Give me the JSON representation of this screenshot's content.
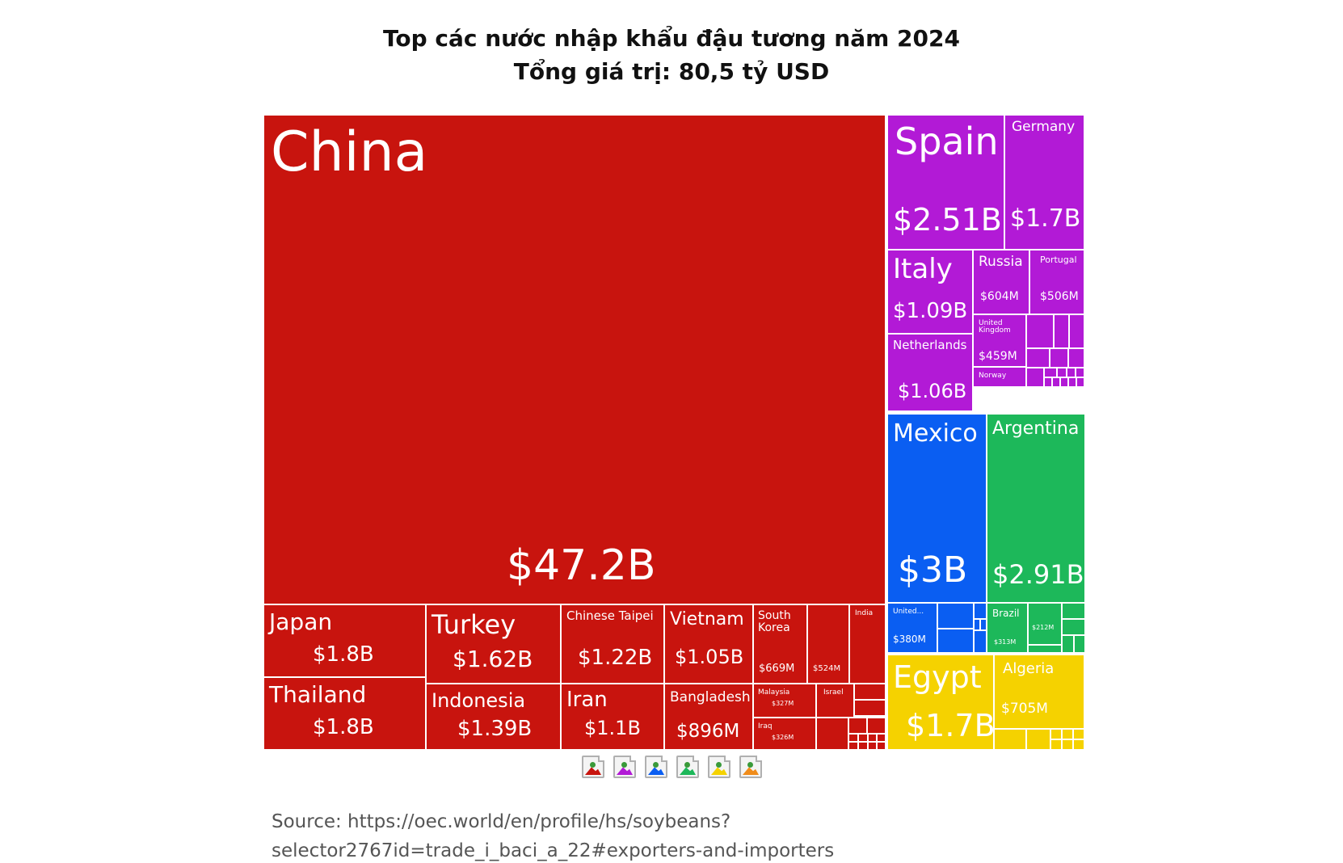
{
  "header": {
    "title_line1": "Top các nước nhập khẩu đậu tương năm 2024",
    "title_line2": "Tổng giá trị: 80,5 tỷ USD"
  },
  "chart_data": {
    "type": "treemap",
    "title": "Top các nước nhập khẩu đậu tương năm 2024",
    "subtitle": "Tổng giá trị: 80,5 tỷ USD",
    "value_unit": "USD",
    "regions": [
      {
        "region": "asia",
        "color": "#c8140e"
      },
      {
        "region": "europe",
        "color": "#b21ad6"
      },
      {
        "region": "north-america",
        "color": "#0a5ef2"
      },
      {
        "region": "south-america",
        "color": "#1db85a"
      },
      {
        "region": "africa",
        "color": "#f5d200"
      }
    ],
    "tiles": [
      {
        "id": "china",
        "name": "China",
        "value_label": "$47.2B",
        "value": 47.2,
        "region": "asia"
      },
      {
        "id": "japan",
        "name": "Japan",
        "value_label": "$1.8B",
        "value": 1.8,
        "region": "asia"
      },
      {
        "id": "thailand",
        "name": "Thailand",
        "value_label": "$1.8B",
        "value": 1.8,
        "region": "asia"
      },
      {
        "id": "turkey",
        "name": "Turkey",
        "value_label": "$1.62B",
        "value": 1.62,
        "region": "asia"
      },
      {
        "id": "indonesia",
        "name": "Indonesia",
        "value_label": "$1.39B",
        "value": 1.39,
        "region": "asia"
      },
      {
        "id": "chinese-taipei",
        "name": "Chinese Taipei",
        "value_label": "$1.22B",
        "value": 1.22,
        "region": "asia"
      },
      {
        "id": "iran",
        "name": "Iran",
        "value_label": "$1.1B",
        "value": 1.1,
        "region": "asia"
      },
      {
        "id": "vietnam",
        "name": "Vietnam",
        "value_label": "$1.05B",
        "value": 1.05,
        "region": "asia"
      },
      {
        "id": "bangladesh",
        "name": "Bangladesh",
        "value_label": "$896M",
        "value": 0.896,
        "region": "asia"
      },
      {
        "id": "south-korea",
        "name": "South\nKorea",
        "value_label": "$669M",
        "value": 0.669,
        "region": "asia"
      },
      {
        "id": "asia-524m",
        "name": "",
        "value_label": "$524M",
        "value": 0.524,
        "region": "asia"
      },
      {
        "id": "india",
        "name": "India",
        "value_label": "",
        "value": null,
        "region": "asia"
      },
      {
        "id": "malaysia",
        "name": "Malaysia",
        "value_label": "$327M",
        "value": 0.327,
        "region": "asia"
      },
      {
        "id": "israel",
        "name": "Israel",
        "value_label": "",
        "value": null,
        "region": "asia"
      },
      {
        "id": "iraq",
        "name": "Iraq",
        "value_label": "$326M",
        "value": 0.326,
        "region": "asia"
      },
      {
        "id": "spain",
        "name": "Spain",
        "value_label": "$2.51B",
        "value": 2.51,
        "region": "europe"
      },
      {
        "id": "germany",
        "name": "Germany",
        "value_label": "$1.7B",
        "value": 1.7,
        "region": "europe"
      },
      {
        "id": "italy",
        "name": "Italy",
        "value_label": "$1.09B",
        "value": 1.09,
        "region": "europe"
      },
      {
        "id": "netherlands",
        "name": "Netherlands",
        "value_label": "$1.06B",
        "value": 1.06,
        "region": "europe"
      },
      {
        "id": "russia",
        "name": "Russia",
        "value_label": "$604M",
        "value": 0.604,
        "region": "europe"
      },
      {
        "id": "portugal",
        "name": "Portugal",
        "value_label": "$506M",
        "value": 0.506,
        "region": "europe"
      },
      {
        "id": "united-kingdom",
        "name": "United\nKingdom",
        "value_label": "$459M",
        "value": 0.459,
        "region": "europe"
      },
      {
        "id": "norway",
        "name": "Norway",
        "value_label": "",
        "value": null,
        "region": "europe"
      },
      {
        "id": "mexico",
        "name": "Mexico",
        "value_label": "$3B",
        "value": 3.0,
        "region": "north-america"
      },
      {
        "id": "united-states",
        "name": "United...",
        "value_label": "$380M",
        "value": 0.38,
        "region": "north-america"
      },
      {
        "id": "argentina",
        "name": "Argentina",
        "value_label": "$2.91B",
        "value": 2.91,
        "region": "south-america"
      },
      {
        "id": "brazil",
        "name": "Brazil",
        "value_label": "$313M",
        "value": 0.313,
        "region": "south-america"
      },
      {
        "id": "south-america-212m",
        "name": "",
        "value_label": "$212M",
        "value": 0.212,
        "region": "south-america"
      },
      {
        "id": "egypt",
        "name": "Egypt",
        "value_label": "$1.7B",
        "value": 1.7,
        "region": "africa"
      },
      {
        "id": "algeria",
        "name": "Algeria",
        "value_label": "$705M",
        "value": 0.705,
        "region": "africa"
      }
    ]
  },
  "legend": {
    "icons": [
      {
        "name": "asia-legend-icon",
        "color": "#c8140e"
      },
      {
        "name": "europe-legend-icon",
        "color": "#b21ad6"
      },
      {
        "name": "north-america-legend-icon",
        "color": "#0a5ef2"
      },
      {
        "name": "south-america-legend-icon",
        "color": "#1db85a"
      },
      {
        "name": "africa-legend-icon",
        "color": "#f5d200"
      },
      {
        "name": "oceania-legend-icon",
        "color": "#f08c1a"
      }
    ]
  },
  "footer": {
    "source_line1": "Source: https://oec.world/en/profile/hs/soybeans?",
    "source_line2": "selector2767id=trade_i_baci_a_22#exporters-and-importers"
  }
}
